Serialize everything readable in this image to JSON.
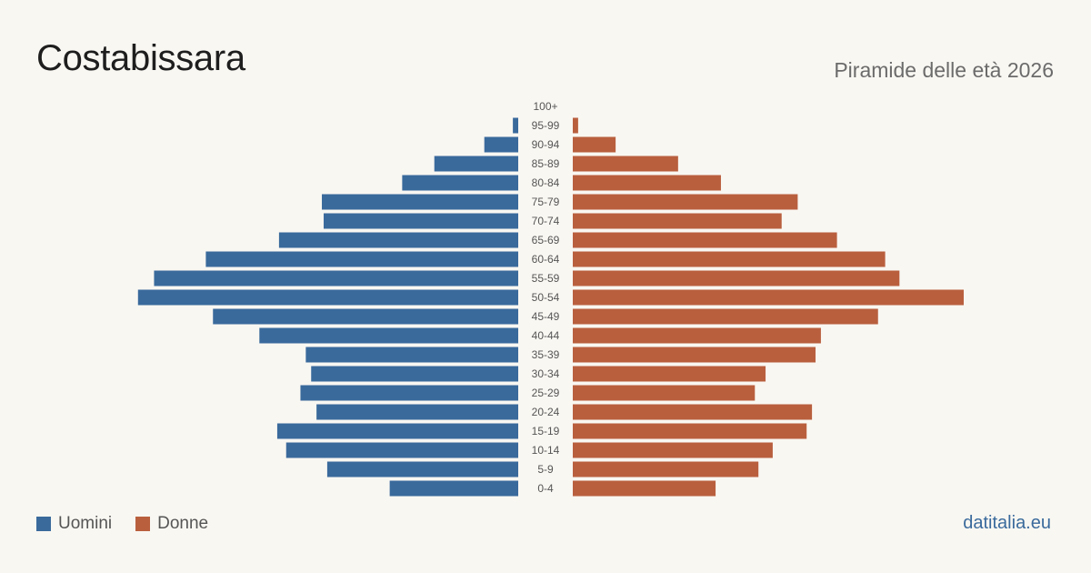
{
  "title": "Costabissara",
  "subtitle": "Piramide delle età 2026",
  "brand": "datitalia.eu",
  "colors": {
    "men": "#3a6a9c",
    "women": "#b95f3e",
    "brand": "#3a6a9c"
  },
  "legend": {
    "men_label": "Uomini",
    "women_label": "Donne"
  },
  "chart_data": {
    "type": "bar",
    "orientation": "horizontal-pyramid",
    "categories": [
      "100+",
      "95-99",
      "90-94",
      "85-89",
      "80-84",
      "75-79",
      "70-74",
      "65-69",
      "60-64",
      "55-59",
      "50-54",
      "45-49",
      "40-44",
      "35-39",
      "30-34",
      "25-29",
      "20-24",
      "15-19",
      "10-14",
      "5-9",
      "0-4"
    ],
    "series": [
      {
        "name": "Uomini",
        "values": [
          0,
          3,
          19,
          47,
          65,
          110,
          109,
          134,
          175,
          204,
          213,
          171,
          145,
          119,
          116,
          122,
          113,
          135,
          130,
          107,
          72
        ]
      },
      {
        "name": "Donne",
        "values": [
          0,
          3,
          24,
          59,
          83,
          126,
          117,
          148,
          175,
          183,
          219,
          171,
          139,
          136,
          108,
          102,
          134,
          131,
          112,
          104,
          80
        ]
      }
    ],
    "legend_position": "bottom-left",
    "grid": false
  }
}
